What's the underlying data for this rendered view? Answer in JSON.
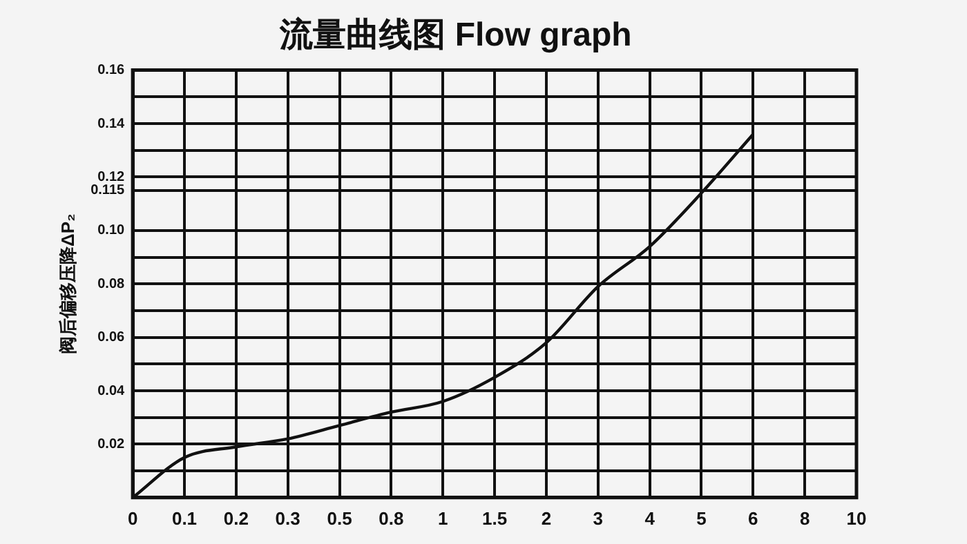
{
  "chart_data": {
    "type": "line",
    "title": "流量曲线图 Flow graph",
    "ylabel": "阀后偏移压降ΔP₂",
    "categories": [
      "0",
      "0.1",
      "0.2",
      "0.3",
      "0.5",
      "0.8",
      "1",
      "1.5",
      "2",
      "3",
      "4",
      "5",
      "6",
      "8",
      "10"
    ],
    "series": [
      {
        "color": "#111111",
        "values": [
          0,
          0.015,
          0.019,
          0.022,
          0.027,
          0.032,
          0.036,
          0.045,
          0.058,
          0.079,
          0.094,
          0.114,
          0.136,
          null,
          null
        ]
      }
    ],
    "ylim": [
      0,
      0.16
    ],
    "yticks": [
      {
        "value": 0,
        "label": null
      },
      {
        "value": 0.01,
        "label": null
      },
      0.02,
      {
        "value": 0.03,
        "label": null
      },
      0.04,
      {
        "value": 0.05,
        "label": null
      },
      0.06,
      {
        "value": 0.07,
        "label": null
      },
      0.08,
      {
        "value": 0.09,
        "label": null
      },
      {
        "value": 0.1,
        "label": "0.10"
      },
      0.115,
      0.12,
      {
        "value": 0.13,
        "label": null
      },
      0.14,
      {
        "value": 0.15,
        "label": null
      },
      0.16
    ],
    "grid": true,
    "legend": false,
    "marker": "none",
    "line_style": "solid"
  }
}
